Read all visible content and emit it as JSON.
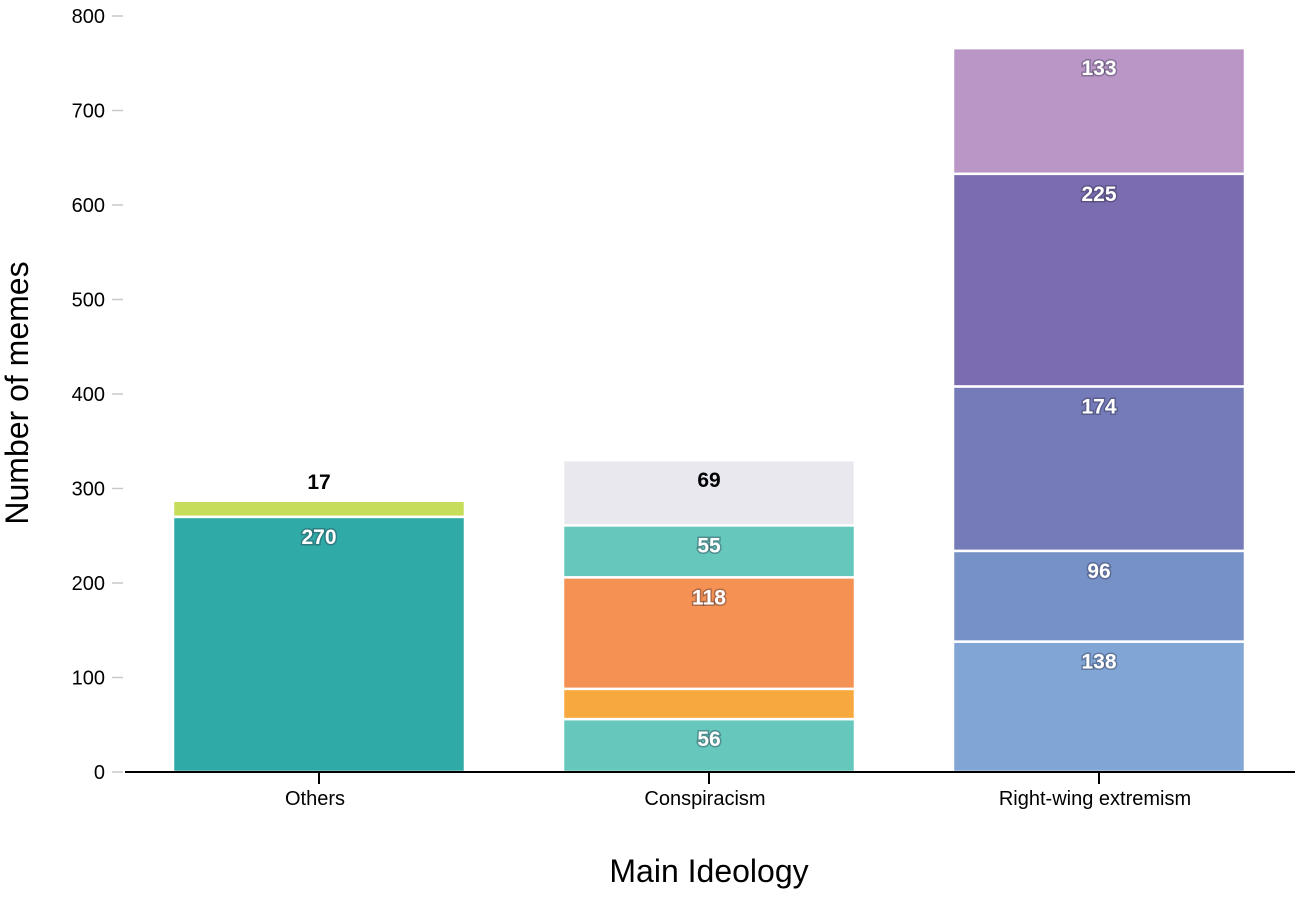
{
  "chart_data": {
    "type": "bar",
    "stacked": true,
    "xlabel": "Main Ideology",
    "ylabel": "Number of memes",
    "ylim": [
      0,
      800
    ],
    "yticks": [
      0,
      100,
      200,
      300,
      400,
      500,
      600,
      700,
      800
    ],
    "grid": false,
    "legend": "none",
    "categories": [
      "Others",
      "Conspiracism",
      "Right-wing extremism"
    ],
    "bars": [
      {
        "category": "Others",
        "segments": [
          {
            "value": 270,
            "label": "270",
            "color": "#30aaa6",
            "label_color": "light"
          },
          {
            "value": 17,
            "label": "17",
            "color": "#c6dd5c",
            "label_color": "dark",
            "label_above": true
          }
        ]
      },
      {
        "category": "Conspiracism",
        "segments": [
          {
            "value": 56,
            "label": "56",
            "color": "#66c7bc",
            "label_color": "light"
          },
          {
            "value": 32,
            "label": "",
            "color": "#f7a83e",
            "label_color": "light"
          },
          {
            "value": 118,
            "label": "118",
            "color": "#f59152",
            "label_color": "light"
          },
          {
            "value": 55,
            "label": "55",
            "color": "#66c7bc",
            "label_color": "light"
          },
          {
            "value": 69,
            "label": "69",
            "color": "#e9e8ef",
            "label_color": "dark"
          }
        ]
      },
      {
        "category": "Right-wing extremism",
        "segments": [
          {
            "value": 138,
            "label": "138",
            "color": "#81a5d4",
            "label_color": "light"
          },
          {
            "value": 96,
            "label": "96",
            "color": "#7691c6",
            "label_color": "light"
          },
          {
            "value": 174,
            "label": "174",
            "color": "#757bb9",
            "label_color": "light"
          },
          {
            "value": 225,
            "label": "225",
            "color": "#7b6baf",
            "label_color": "light"
          },
          {
            "value": 133,
            "label": "133",
            "color": "#b996c6",
            "label_color": "light"
          }
        ]
      }
    ]
  }
}
